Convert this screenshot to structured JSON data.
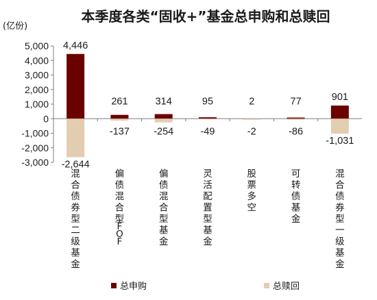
{
  "chart_data": {
    "type": "bar",
    "title": "本季度各类“固收+”基金总申购和总赎回",
    "unit_label": "(亿份)",
    "ylim": [
      -3000,
      5000
    ],
    "yticks": [
      5000,
      4000,
      3000,
      2000,
      1000,
      0,
      -1000,
      -2000,
      -3000
    ],
    "ytick_labels": [
      "5,000",
      "4,000",
      "3,000",
      "2,000",
      "1,000",
      "0",
      "-1,000",
      "-2,000",
      "-3,000"
    ],
    "categories": [
      "混合债券型二级基金",
      "偏债混合型FOF",
      "偏债混合型基金",
      "灵活配置型基金",
      "股票多空",
      "可转债基金",
      "混合债券型一级基金"
    ],
    "series": [
      {
        "name": "总申购",
        "color": "#6b0000",
        "values": [
          4446,
          261,
          314,
          95,
          2,
          77,
          901
        ],
        "labels": [
          "4,446",
          "261",
          "314",
          "95",
          "2",
          "77",
          "901"
        ]
      },
      {
        "name": "总赎回",
        "color": "#e3cdb0",
        "values": [
          -2644,
          -137,
          -254,
          -49,
          -2,
          -86,
          -1031
        ],
        "labels": [
          "-2,644",
          "-137",
          "-254",
          "-49",
          "-2",
          "-86",
          "-1,031"
        ]
      }
    ],
    "legend_position": "bottom",
    "grid": false
  }
}
